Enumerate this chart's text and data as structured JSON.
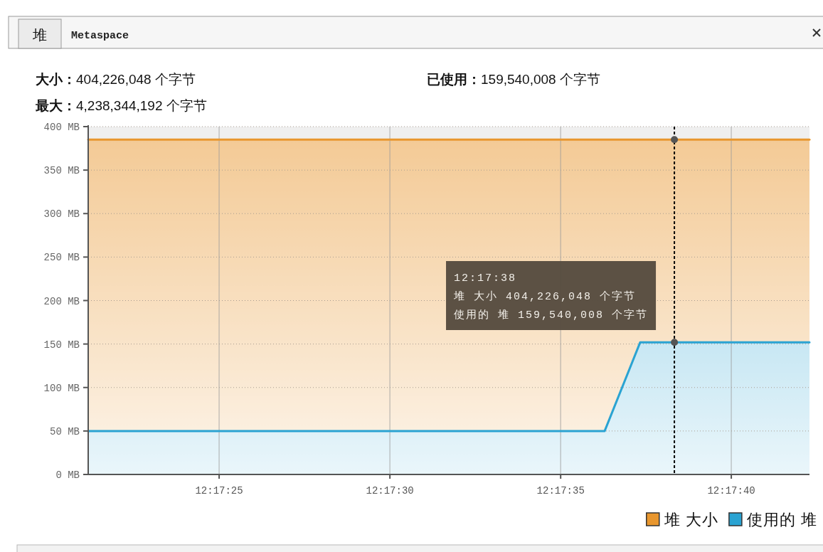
{
  "chart_data": {
    "type": "area",
    "title": "堆",
    "annotations": [
      "Metaspace",
      "大小：404,226,048 个字节",
      "最大：4,238,344,192 个字节",
      "已使用：159,540,008 个字节",
      "12:17:38",
      "堆 大小   404,226,048 个字节",
      "使用的 堆  159,540,008 个字节"
    ],
    "xlim": [
      12.289213,
      12.29508
    ],
    "xticks": [
      {
        "value": 12.290278,
        "label": "12:17:25"
      },
      {
        "value": 12.291667,
        "label": "12:17:30"
      },
      {
        "value": 12.293056,
        "label": "12:17:35"
      },
      {
        "value": 12.294444,
        "label": "12:17:40"
      }
    ],
    "ylim": [
      0,
      400
    ],
    "yticks": [
      {
        "value": 0,
        "label": "0 MB"
      },
      {
        "value": 50,
        "label": "50 MB"
      },
      {
        "value": 100,
        "label": "100 MB"
      },
      {
        "value": 150,
        "label": "150 MB"
      },
      {
        "value": 200,
        "label": "200 MB"
      },
      {
        "value": 250,
        "label": "250 MB"
      },
      {
        "value": 300,
        "label": "300 MB"
      },
      {
        "value": 350,
        "label": "350 MB"
      },
      {
        "value": 400,
        "label": "400 MB"
      }
    ],
    "grid": true,
    "legend": "bottom right",
    "ref_lines": [
      {
        "axis": "x",
        "value": 12.293981,
        "label": null,
        "color": "#000000",
        "line_style": "dashed"
      }
    ],
    "series": [
      {
        "name": "堆 大小",
        "color": "#e8962e",
        "x": [
          12.289213,
          12.29508
        ],
        "values": [
          385,
          385
        ]
      },
      {
        "name": "使用的 堆",
        "color": "#2aa3d2",
        "x": [
          12.289213,
          12.293414,
          12.293703,
          12.29508
        ],
        "values": [
          50,
          50,
          152,
          152
        ]
      },
      {
        "type": "scatter",
        "color": "#555555",
        "marker": "circle",
        "x": [
          12.293981,
          12.293981
        ],
        "values": [
          385,
          152
        ]
      }
    ]
  }
}
